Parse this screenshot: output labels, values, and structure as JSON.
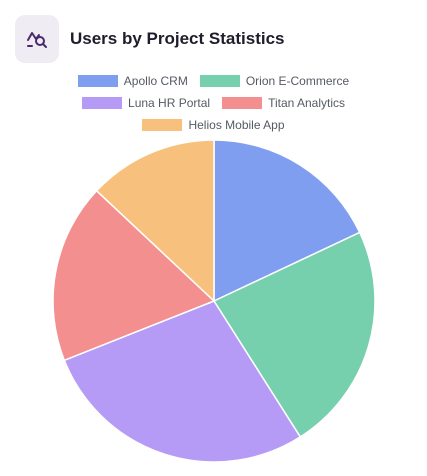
{
  "header": {
    "title": "Users by Project Statistics",
    "icon": "chart-search-icon",
    "icon_color": "#4a2a6a"
  },
  "chart_data": {
    "type": "pie",
    "title": "Users by Project Statistics",
    "legend_position": "top",
    "start_angle": "top, clockwise",
    "categories": [
      "Apollo CRM",
      "Orion E-Commerce",
      "Luna HR Portal",
      "Titan Analytics",
      "Helios Mobile App"
    ],
    "values": [
      18,
      23,
      28,
      18,
      13
    ],
    "colors": [
      "#7f9ef0",
      "#76d0ad",
      "#b59bf6",
      "#f48f8f",
      "#f8c07d"
    ]
  }
}
